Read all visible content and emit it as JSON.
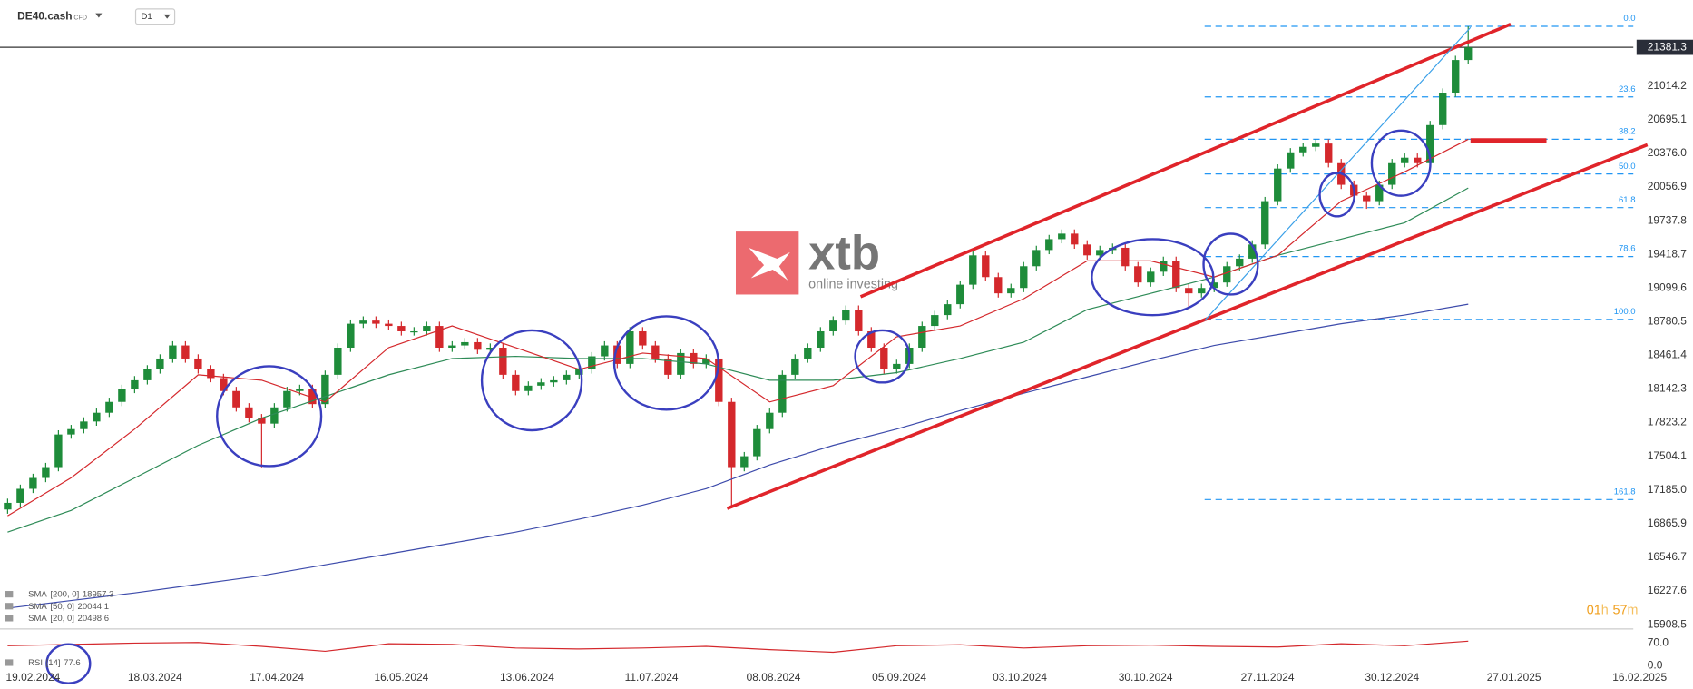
{
  "header": {
    "symbol": "DE40.cash",
    "instrument_type": "CFD",
    "timeframe": "D1"
  },
  "logo": {
    "brand": "xtb",
    "tagline": "online investing"
  },
  "timer": {
    "parts": [
      "01",
      "h",
      "57",
      "m"
    ]
  },
  "chart_data": {
    "type": "candlestick",
    "up_color": "#1e8c3a",
    "down_color": "#d4282c",
    "xlim": [
      -0.6,
      128.0
    ],
    "ylim": [
      15877.6,
      21827
    ],
    "xticks": [
      {
        "value": 2,
        "label": "19.02.2024"
      },
      {
        "value": 11.6,
        "label": "18.03.2024"
      },
      {
        "value": 21.2,
        "label": "17.04.2024"
      },
      {
        "value": 31,
        "label": "16.05.2024"
      },
      {
        "value": 40.9,
        "label": "13.06.2024"
      },
      {
        "value": 50.7,
        "label": "11.07.2024"
      },
      {
        "value": 60.3,
        "label": "08.08.2024"
      },
      {
        "value": 70.2,
        "label": "05.09.2024"
      },
      {
        "value": 79.7,
        "label": "03.10.2024"
      },
      {
        "value": 89.6,
        "label": "30.10.2024"
      },
      {
        "value": 99.2,
        "label": "27.11.2024"
      },
      {
        "value": 109,
        "label": "30.12.2024"
      },
      {
        "value": 118.6,
        "label": "27.01.2025"
      },
      {
        "value": 128.5,
        "label": "16.02.2025"
      }
    ],
    "yticks": [
      21014.2,
      20695.1,
      {
        "value": 20376.0,
        "label": "20376.0"
      },
      20056.9,
      19737.8,
      19418.7,
      19099.6,
      18780.5,
      18461.4,
      18142.3,
      17823.2,
      17504.1,
      {
        "value": 17185.0,
        "label": "17185.0"
      },
      16865.9,
      16546.7,
      16227.6,
      15908.5
    ],
    "current_price": 21381.3,
    "open": [
      17000,
      17063,
      17196,
      17299,
      17402,
      17711,
      17762,
      17834,
      17917,
      18020,
      18143,
      18225,
      18328,
      18431,
      18555,
      18431,
      18328,
      18246,
      18123,
      17968,
      17865,
      17814,
      17968,
      18123,
      18143,
      17999,
      18277,
      18534,
      18761,
      18791,
      18761,
      18740,
      18689,
      18689,
      18740,
      18534,
      18555,
      18586,
      18514,
      18534,
      18277,
      18123,
      18174,
      18205,
      18225,
      18277,
      18328,
      18452,
      18555,
      18380,
      18689,
      18555,
      18431,
      18277,
      18483,
      18380,
      18431,
      18020,
      17402,
      17505,
      17762,
      17917,
      18277,
      18431,
      18534,
      18689,
      18791,
      18894,
      18689,
      18534,
      18328,
      18380,
      18534,
      18740,
      18843,
      18946,
      19131,
      19409,
      19203,
      19049,
      19100,
      19306,
      19460,
      19563,
      19615,
      19512,
      19409,
      19460,
      19481,
      19306,
      19152,
      19254,
      19357,
      19100,
      19049,
      19100,
      19152,
      19306,
      19378,
      19512,
      19923,
      20232,
      20386,
      20438,
      20469,
      20283,
      20078,
      19975,
      19923,
      20078,
      20283,
      20335,
      20283,
      20644,
      20952,
      21261
    ],
    "high": [
      17103,
      17236,
      17339,
      17442,
      17751,
      17802,
      17874,
      17957,
      18060,
      18183,
      18265,
      18368,
      18471,
      18595,
      18595,
      18471,
      18368,
      18286,
      18163,
      18008,
      17905,
      18008,
      18163,
      18183,
      18183,
      18317,
      18574,
      18801,
      18831,
      18831,
      18801,
      18780,
      18729,
      18780,
      18780,
      18595,
      18626,
      18626,
      18574,
      18574,
      18317,
      18214,
      18245,
      18265,
      18317,
      18368,
      18492,
      18595,
      18595,
      18729,
      18729,
      18595,
      18471,
      18523,
      18523,
      18471,
      18471,
      18060,
      17545,
      17802,
      17957,
      18317,
      18471,
      18574,
      18729,
      18831,
      18934,
      18934,
      18729,
      18574,
      18420,
      18574,
      18780,
      18883,
      18986,
      19171,
      19449,
      19449,
      19243,
      19140,
      19346,
      19500,
      19603,
      19655,
      19655,
      19552,
      19500,
      19521,
      19521,
      19346,
      19294,
      19397,
      19397,
      19140,
      19140,
      19192,
      19346,
      19418,
      19552,
      19963,
      20272,
      20426,
      20478,
      20509,
      20509,
      20323,
      20118,
      20015,
      20118,
      20323,
      20375,
      20375,
      20684,
      20992,
      21301,
      21580
    ],
    "low": [
      16960,
      17023,
      17156,
      17259,
      17362,
      17671,
      17722,
      17794,
      17877,
      17980,
      18103,
      18185,
      18288,
      18391,
      18391,
      18288,
      18206,
      18083,
      17928,
      17825,
      17400,
      17774,
      17928,
      18083,
      17959,
      17959,
      18237,
      18494,
      18721,
      18721,
      18700,
      18649,
      18649,
      18649,
      18494,
      18494,
      18515,
      18474,
      18474,
      18237,
      18083,
      18083,
      18134,
      18165,
      18185,
      18237,
      18288,
      18412,
      18340,
      18340,
      18515,
      18391,
      18237,
      18237,
      18340,
      18340,
      17980,
      17011,
      17362,
      17465,
      17722,
      17877,
      18237,
      18391,
      18494,
      18649,
      18751,
      18649,
      18494,
      18288,
      18288,
      18340,
      18494,
      18700,
      18803,
      18906,
      19091,
      19163,
      19009,
      19009,
      19060,
      19266,
      19420,
      19523,
      19472,
      19369,
      19369,
      19420,
      19266,
      19112,
      19112,
      19214,
      19060,
      18900,
      19009,
      19060,
      19112,
      19266,
      19338,
      19472,
      19883,
      20192,
      20346,
      20398,
      20243,
      20038,
      19935,
      19850,
      19883,
      20038,
      20243,
      20243,
      20243,
      20604,
      20912,
      21221
    ],
    "close": [
      17063,
      17196,
      17299,
      17402,
      17711,
      17762,
      17834,
      17917,
      18020,
      18143,
      18225,
      18328,
      18431,
      18555,
      18431,
      18328,
      18246,
      18123,
      17968,
      17865,
      17814,
      17968,
      18123,
      18143,
      17999,
      18277,
      18534,
      18761,
      18791,
      18761,
      18740,
      18689,
      18689,
      18740,
      18534,
      18555,
      18586,
      18514,
      18534,
      18277,
      18123,
      18174,
      18205,
      18225,
      18277,
      18328,
      18452,
      18555,
      18380,
      18689,
      18555,
      18431,
      18277,
      18483,
      18380,
      18431,
      18020,
      17402,
      17505,
      17762,
      17917,
      18277,
      18431,
      18534,
      18689,
      18791,
      18894,
      18689,
      18534,
      18328,
      18380,
      18534,
      18740,
      18843,
      18946,
      19131,
      19409,
      19203,
      19049,
      19100,
      19306,
      19460,
      19563,
      19615,
      19512,
      19409,
      19460,
      19481,
      19306,
      19152,
      19254,
      19357,
      19100,
      19049,
      19100,
      19152,
      19306,
      19378,
      19512,
      19923,
      20232,
      20386,
      20438,
      20469,
      20283,
      20078,
      19975,
      19923,
      20078,
      20283,
      20335,
      20283,
      20644,
      20952,
      21261,
      21381
    ],
    "indicators": [
      {
        "name": "SMA",
        "params": "[200, 0]",
        "last": 18957.3,
        "color": "#3d4bab",
        "x": [
          0,
          5,
          10,
          15,
          20,
          25,
          30,
          35,
          40,
          45,
          50,
          55,
          60,
          65,
          70,
          75,
          80,
          85,
          90,
          95,
          100,
          105,
          110,
          115
        ],
        "values": [
          16065,
          16137,
          16209,
          16291,
          16373,
          16476,
          16579,
          16682,
          16785,
          16908,
          17042,
          17197,
          17423,
          17608,
          17762,
          17937,
          18102,
          18256,
          18411,
          18555,
          18658,
          18761,
          18843,
          18946
        ]
      },
      {
        "name": "SMA",
        "params": "[50, 0]",
        "last": 20044.1,
        "color": "#2e8b57",
        "x": [
          0,
          5,
          10,
          15,
          20,
          25,
          30,
          35,
          40,
          45,
          50,
          55,
          60,
          65,
          70,
          75,
          80,
          85,
          90,
          95,
          100,
          105,
          110,
          115
        ],
        "values": [
          16785,
          16991,
          17299,
          17608,
          17865,
          18071,
          18277,
          18431,
          18452,
          18431,
          18431,
          18380,
          18225,
          18225,
          18298,
          18431,
          18586,
          18894,
          19049,
          19203,
          19409,
          19563,
          19718,
          20047
        ]
      },
      {
        "name": "SMA",
        "params": "[20, 0]",
        "last": 20498.6,
        "color": "#d4282c",
        "x": [
          0,
          5,
          10,
          15,
          20,
          25,
          30,
          35,
          40,
          45,
          50,
          55,
          60,
          65,
          70,
          75,
          80,
          85,
          90,
          95,
          100,
          105,
          110,
          115
        ],
        "values": [
          16940,
          17300,
          17762,
          18277,
          18225,
          18020,
          18534,
          18740,
          18534,
          18328,
          18483,
          18431,
          18020,
          18174,
          18637,
          18740,
          18997,
          19357,
          19357,
          19203,
          19409,
          19923,
          20201,
          20510
        ]
      }
    ],
    "fib_levels": [
      {
        "label": "0.0",
        "price": 21580
      },
      {
        "label": "23.6",
        "price": 20911
      },
      {
        "label": "38.2",
        "price": 20510
      },
      {
        "label": "50.0",
        "price": 20181
      },
      {
        "label": "61.8",
        "price": 19862
      },
      {
        "label": "78.6",
        "price": 19398
      },
      {
        "label": "100.0",
        "price": 18802
      },
      {
        "label": "161.8",
        "price": 17094
      }
    ],
    "fib_color": "#2196f3",
    "rsi": {
      "name": "RSI",
      "params": "[14]",
      "last": 77.6,
      "color": "#d4282c",
      "ylim": [
        0,
        100
      ],
      "yticks": [
        {
          "value": 70,
          "label": "70.0"
        },
        {
          "value": 0,
          "label": "0.0"
        }
      ],
      "x": [
        0,
        5,
        10,
        15,
        20,
        25,
        30,
        35,
        40,
        45,
        50,
        55,
        60,
        65,
        70,
        75,
        80,
        85,
        90,
        95,
        100,
        105,
        110,
        115
      ],
      "values": [
        62,
        66,
        70,
        72,
        60,
        45,
        68,
        66,
        55,
        52,
        55,
        60,
        50,
        42,
        62,
        65,
        55,
        62,
        64,
        60,
        58,
        68,
        62,
        76
      ]
    }
  }
}
